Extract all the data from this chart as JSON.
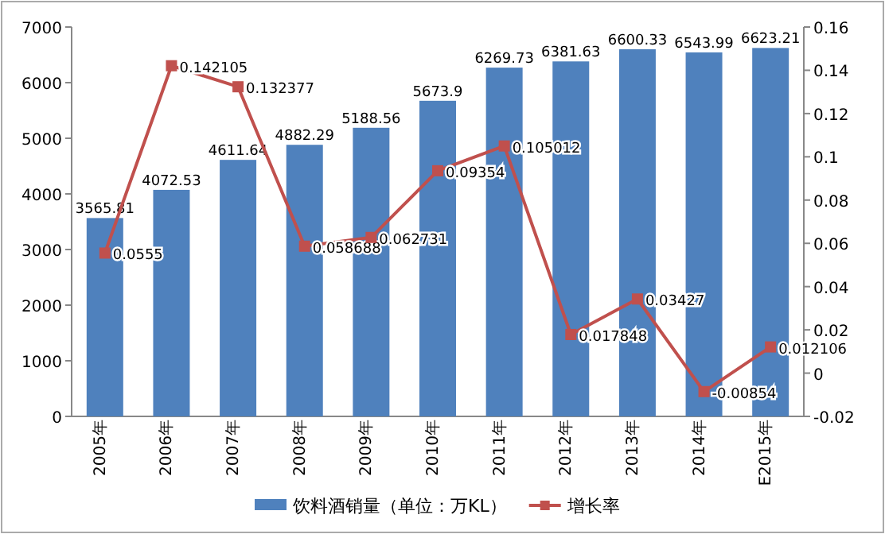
{
  "chart_data": {
    "type": "bar",
    "categories": [
      "2005年",
      "2006年",
      "2007年",
      "2008年",
      "2009年",
      "2010年",
      "2011年",
      "2012年",
      "2013年",
      "2014年",
      "E2015年"
    ],
    "series": [
      {
        "name": "饮料酒销量（单位：万KL）",
        "color": "#4f81bd",
        "values": [
          3565.81,
          4072.53,
          4611.64,
          4882.29,
          5188.56,
          5673.9,
          6269.73,
          6381.63,
          6600.33,
          6543.99,
          6623.21
        ]
      },
      {
        "name": "增长率",
        "type": "line",
        "axis": "y2",
        "color": "#c0504d",
        "values": [
          0.0555,
          0.142105,
          0.132377,
          0.058688,
          0.062731,
          0.09354,
          0.105012,
          0.017848,
          0.03427,
          -0.00854,
          0.012106
        ]
      }
    ],
    "ylim": [
      0,
      7000
    ],
    "yticks": [
      0,
      1000,
      2000,
      3000,
      4000,
      5000,
      6000,
      7000
    ],
    "y2lim": [
      -0.02,
      0.16
    ],
    "y2ticks": [
      -0.02,
      0,
      0.02,
      0.04,
      0.06,
      0.08,
      0.1,
      0.12,
      0.14,
      0.16
    ],
    "data_labels": true,
    "legend": "bottom",
    "grid": false,
    "marker": "square"
  }
}
